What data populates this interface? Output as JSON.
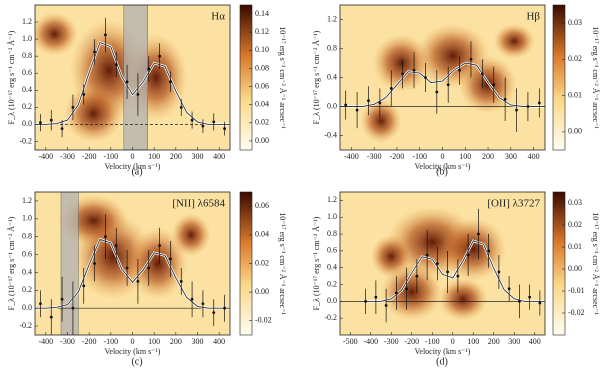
{
  "chart_data": [
    {
      "type": "line",
      "title": "Hα",
      "caption": "(a)",
      "x_label": "Velocity (km s⁻¹)",
      "y_label": "F_λ (10⁻¹⁷ erg s⁻¹ cm⁻² Å⁻¹)",
      "colorbar_label": "10⁻¹⁷ erg s⁻¹ cm⁻² Å⁻¹ arcsec⁻¹",
      "xlim": [
        -450,
        450
      ],
      "xticks": [
        -400,
        -300,
        -200,
        -100,
        0,
        100,
        200,
        300,
        400
      ],
      "ylim": [
        -0.3,
        1.4
      ],
      "yticks": [
        -0.2,
        {
          "value": 0,
          "label": "0.0"
        },
        0.2,
        0.4,
        0.6,
        0.8,
        {
          "value": 1,
          "label": "1.0"
        },
        1.2
      ],
      "colorbar_lim": [
        -0.01,
        0.15
      ],
      "colorbar_ticks": [
        {
          "value": 0,
          "label": "0.00"
        },
        0.02,
        0.04,
        0.06,
        0.08,
        {
          "value": 0.1,
          "label": "0.10"
        },
        0.12,
        0.14
      ],
      "shaded_regions": [
        [
          -40,
          70
        ]
      ],
      "fit": {
        "x": [
          -450,
          -400,
          -350,
          -300,
          -250,
          -200,
          -150,
          -100,
          -50,
          0,
          50,
          100,
          150,
          200,
          250,
          300,
          350,
          400,
          450
        ],
        "values": [
          0,
          0,
          0.01,
          0.05,
          0.23,
          0.61,
          0.96,
          0.91,
          0.56,
          0.35,
          0.5,
          0.72,
          0.68,
          0.39,
          0.14,
          0.03,
          0,
          0,
          0
        ]
      },
      "points": {
        "x": [
          -425,
          -375,
          -325,
          -275,
          -225,
          -175,
          -125,
          -75,
          -25,
          25,
          75,
          125,
          175,
          225,
          275,
          325,
          375,
          425
        ],
        "values": [
          0.02,
          0.05,
          -0.05,
          0.2,
          0.35,
          0.85,
          1.05,
          0.7,
          0.5,
          0.35,
          0.65,
          0.8,
          0.5,
          0.2,
          0.05,
          -0.02,
          0.03,
          -0.05
        ],
        "errors": [
          0.1,
          0.12,
          0.1,
          0.15,
          0.12,
          0.15,
          0.2,
          0.15,
          0.2,
          0.25,
          0.15,
          0.15,
          0.12,
          0.1,
          0.1,
          0.08,
          0.1,
          0.08
        ]
      }
    },
    {
      "type": "line",
      "title": "Hβ",
      "caption": "(b)",
      "x_label": "Velocity (km s⁻¹)",
      "y_label": "F_λ (10⁻¹⁷ erg s⁻¹ cm⁻² Å⁻¹)",
      "colorbar_label": "10⁻¹⁷ erg s⁻¹ cm⁻² Å⁻¹ arcsec⁻¹",
      "xlim": [
        -450,
        450
      ],
      "xticks": [
        -400,
        -300,
        -200,
        -100,
        0,
        100,
        200,
        300,
        400
      ],
      "ylim": [
        -0.6,
        1.4
      ],
      "yticks": [
        -0.4,
        {
          "value": 0,
          "label": "0.0"
        },
        0.4,
        0.8,
        1.2
      ],
      "colorbar_lim": [
        -0.005,
        0.035
      ],
      "colorbar_ticks": [
        {
          "value": 0,
          "label": "0.00"
        },
        {
          "value": 0.01,
          "label": "0.01"
        },
        {
          "value": 0.02,
          "label": "0.02"
        },
        {
          "value": 0.03,
          "label": "0.03"
        }
      ],
      "shaded_regions": [],
      "fit": {
        "x": [
          -450,
          -400,
          -350,
          -300,
          -250,
          -200,
          -150,
          -100,
          -50,
          0,
          50,
          100,
          150,
          200,
          250,
          300,
          350,
          400,
          450
        ],
        "values": [
          0,
          0,
          0,
          0.03,
          0.12,
          0.3,
          0.48,
          0.46,
          0.33,
          0.35,
          0.5,
          0.6,
          0.57,
          0.33,
          0.12,
          0.02,
          0,
          0,
          0
        ]
      },
      "points": {
        "x": [
          -425,
          -375,
          -325,
          -275,
          -225,
          -175,
          -125,
          -75,
          -25,
          25,
          75,
          125,
          175,
          225,
          275,
          325,
          375,
          425
        ],
        "values": [
          0.02,
          -0.05,
          0.08,
          0.05,
          0.25,
          0.45,
          0.5,
          0.4,
          0.2,
          0.3,
          0.5,
          0.65,
          0.45,
          0.3,
          0.1,
          -0.05,
          0,
          0.05
        ],
        "errors": [
          0.2,
          0.25,
          0.2,
          0.2,
          0.25,
          0.2,
          0.25,
          0.2,
          0.3,
          0.25,
          0.2,
          0.25,
          0.2,
          0.25,
          0.3,
          0.3,
          0.2,
          0.2
        ]
      }
    },
    {
      "type": "line",
      "title": "[NII] λ6584",
      "caption": "(c)",
      "x_label": "Velocity (km s⁻¹)",
      "y_label": "F_λ (10⁻¹⁷ erg s⁻¹ cm⁻² Å⁻¹)",
      "colorbar_label": "10⁻¹⁷ erg s⁻¹ cm⁻² Å⁻¹ arcsec⁻¹",
      "xlim": [
        -450,
        450
      ],
      "xticks": [
        -400,
        -300,
        -200,
        -100,
        0,
        100,
        200,
        300,
        400
      ],
      "ylim": [
        -0.3,
        1.3
      ],
      "yticks": [
        -0.2,
        {
          "value": 0,
          "label": "0.0"
        },
        0.2,
        0.4,
        0.6,
        0.8,
        {
          "value": 1,
          "label": "1.0"
        },
        1.2
      ],
      "colorbar_lim": [
        -0.03,
        0.07
      ],
      "colorbar_ticks": [
        -0.02,
        {
          "value": 0,
          "label": "0.00"
        },
        0.02,
        0.04,
        0.06
      ],
      "shaded_regions": [
        [
          -330,
          -250
        ]
      ],
      "fit": {
        "x": [
          -450,
          -400,
          -350,
          -300,
          -250,
          -200,
          -150,
          -100,
          -50,
          0,
          50,
          100,
          150,
          200,
          250,
          300,
          350,
          400,
          450
        ],
        "values": [
          0,
          0,
          0.01,
          0.04,
          0.18,
          0.49,
          0.77,
          0.73,
          0.44,
          0.29,
          0.43,
          0.62,
          0.59,
          0.34,
          0.12,
          0.02,
          0,
          0,
          0
        ]
      },
      "points": {
        "x": [
          -425,
          -375,
          -325,
          -275,
          -225,
          -175,
          -125,
          -75,
          -25,
          25,
          75,
          125,
          175,
          225,
          275,
          325,
          375,
          425
        ],
        "values": [
          0.05,
          -0.1,
          0.1,
          0,
          0.25,
          0.5,
          0.8,
          0.7,
          0.45,
          0.3,
          0.45,
          0.7,
          0.55,
          0.3,
          0.1,
          0.05,
          -0.05,
          0
        ],
        "errors": [
          0.15,
          0.2,
          0.25,
          0.3,
          0.2,
          0.2,
          0.25,
          0.2,
          0.2,
          0.25,
          0.2,
          0.2,
          0.2,
          0.15,
          0.2,
          0.15,
          0.15,
          0.15
        ]
      }
    },
    {
      "type": "line",
      "title": "[OII] λ3727",
      "caption": "(d)",
      "x_label": "Velocity (km s⁻¹)",
      "y_label": "F_λ (10⁻¹⁷ erg s⁻¹ cm⁻² Å⁻¹)",
      "colorbar_label": "10⁻¹⁷ erg s⁻¹ cm⁻² Å⁻¹ arcsec⁻¹",
      "xlim": [
        -550,
        450
      ],
      "xticks": [
        -500,
        -400,
        -300,
        -200,
        -100,
        0,
        100,
        200,
        300,
        400
      ],
      "ylim": [
        -0.4,
        1.3
      ],
      "yticks": [
        -0.2,
        {
          "value": 0,
          "label": "0.0"
        },
        0.2,
        0.4,
        0.6,
        0.8,
        {
          "value": 1,
          "label": "1.0"
        },
        1.2
      ],
      "colorbar_lim": [
        -0.03,
        0.035
      ],
      "colorbar_ticks": [
        -0.02,
        -0.01,
        {
          "value": 0,
          "label": "0.00"
        },
        0.01,
        0.02,
        0.03
      ],
      "shaded_regions": [],
      "fit": {
        "x": [
          -450,
          -400,
          -350,
          -300,
          -250,
          -200,
          -150,
          -100,
          -50,
          0,
          50,
          100,
          150,
          200,
          250,
          300,
          350,
          400,
          450
        ],
        "values": [
          0,
          0,
          0,
          0.03,
          0.13,
          0.34,
          0.53,
          0.5,
          0.32,
          0.28,
          0.48,
          0.72,
          0.68,
          0.39,
          0.14,
          0.03,
          0,
          0,
          0
        ]
      },
      "points": {
        "x": [
          -425,
          -375,
          -325,
          -275,
          -225,
          -175,
          -125,
          -75,
          -25,
          25,
          75,
          125,
          175,
          225,
          275,
          325,
          375,
          425
        ],
        "values": [
          0,
          0.05,
          -0.05,
          0.1,
          0.15,
          0.3,
          0.55,
          0.45,
          0.35,
          0.3,
          0.55,
          0.8,
          0.6,
          0.35,
          0.15,
          0,
          0.05,
          -0.02
        ],
        "errors": [
          0.15,
          0.2,
          0.2,
          0.2,
          0.25,
          0.2,
          0.3,
          0.2,
          0.25,
          0.2,
          0.25,
          0.3,
          0.2,
          0.2,
          0.15,
          0.2,
          0.15,
          0.15
        ]
      }
    }
  ]
}
